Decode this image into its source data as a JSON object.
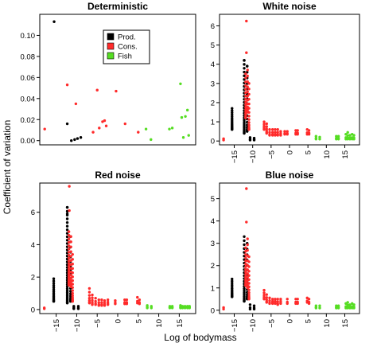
{
  "figure": {
    "xlabel": "Log of bodymass",
    "ylabel": "Coefficient of variation"
  },
  "legend": {
    "placement": "top-center of first panel",
    "entries": [
      {
        "label": "Prod.",
        "color": "#000000"
      },
      {
        "label": "Cons.",
        "color": "#ff2a2a"
      },
      {
        "label": "Fish",
        "color": "#55dd22"
      }
    ]
  },
  "colors": {
    "prod": "#000000",
    "cons": "#ff2a2a",
    "fish": "#55dd22"
  },
  "chart_data": [
    {
      "type": "scatter",
      "title": "Deterministic",
      "xlim": [
        -19,
        19
      ],
      "ylim": [
        -0.004,
        0.12
      ],
      "xticks": [],
      "yticks": [
        0.0,
        0.02,
        0.04,
        0.06,
        0.08,
        0.1
      ],
      "ytick_labels": [
        "0.00",
        "0.02",
        "0.04",
        "0.06",
        "0.08",
        "0.10"
      ],
      "series": [
        {
          "name": "Prod.",
          "points": [
            [
              -15.5,
              0.113
            ],
            [
              -12.3,
              0.016
            ],
            [
              -11.3,
              0.0
            ],
            [
              -10.5,
              0.001
            ],
            [
              -9.8,
              0.002
            ],
            [
              -9.0,
              0.003
            ]
          ]
        },
        {
          "name": "Cons.",
          "points": [
            [
              -17.8,
              0.011
            ],
            [
              -12.3,
              0.053
            ],
            [
              -10.2,
              0.035
            ],
            [
              -6.0,
              0.008
            ],
            [
              -5.0,
              0.048
            ],
            [
              -4.5,
              0.012
            ],
            [
              -3.7,
              0.018
            ],
            [
              -3.2,
              0.019
            ],
            [
              -2.8,
              0.014
            ],
            [
              -0.4,
              0.047
            ],
            [
              1.8,
              0.016
            ],
            [
              5.0,
              0.008
            ]
          ]
        },
        {
          "name": "Fish",
          "points": [
            [
              6.9,
              0.011
            ],
            [
              8.1,
              0.001
            ],
            [
              12.6,
              0.011
            ],
            [
              13.3,
              0.012
            ],
            [
              15.3,
              0.054
            ],
            [
              15.6,
              0.022
            ],
            [
              16.0,
              0.003
            ],
            [
              16.5,
              0.023
            ],
            [
              17.0,
              0.029
            ],
            [
              17.3,
              0.005
            ]
          ]
        }
      ]
    },
    {
      "type": "scatter",
      "title": "White noise",
      "xlim": [
        -19,
        19
      ],
      "ylim": [
        -0.2,
        6.6
      ],
      "xticks": [
        -15,
        -10,
        -5,
        0,
        5,
        10,
        15
      ],
      "yticks": [
        0,
        1,
        2,
        3,
        4,
        5,
        6
      ],
      "ytick_labels": [
        "0",
        "1",
        "2",
        "3",
        "4",
        "5",
        "6"
      ],
      "series": [
        {
          "name": "Prod.",
          "columns": [
            [
              -15.6,
              0.6,
              1.7,
              16
            ],
            [
              -12.3,
              0.4,
              4.2,
              30
            ],
            [
              -11.5,
              0.5,
              3.9,
              18
            ],
            [
              -10.7,
              0.05,
              0.18,
              3
            ],
            [
              -9.6,
              0.05,
              0.15,
              3
            ]
          ],
          "points": [
            [
              -12.3,
              4.2
            ],
            [
              -11.5,
              3.9
            ]
          ]
        },
        {
          "name": "Cons.",
          "columns": [
            [
              -17.9,
              0.05,
              0.12,
              2
            ],
            [
              -11.9,
              1.2,
              3.5,
              18
            ],
            [
              -11.4,
              1.5,
              3.7,
              12
            ],
            [
              -11.0,
              0.6,
              3.0,
              14
            ],
            [
              -6.9,
              0.6,
              1.0,
              6
            ],
            [
              -6.2,
              0.4,
              0.9,
              6
            ],
            [
              -5.4,
              0.3,
              0.6,
              4
            ],
            [
              -4.6,
              0.3,
              0.6,
              4
            ],
            [
              -3.9,
              0.3,
              0.6,
              4
            ],
            [
              -3.2,
              0.3,
              0.6,
              4
            ],
            [
              -2.4,
              0.3,
              0.5,
              4
            ],
            [
              -1.3,
              0.35,
              0.5,
              3
            ],
            [
              -0.6,
              0.35,
              0.5,
              3
            ],
            [
              1.7,
              0.35,
              0.55,
              3
            ],
            [
              2.2,
              0.35,
              0.55,
              3
            ],
            [
              4.8,
              0.35,
              0.6,
              3
            ],
            [
              5.3,
              0.35,
              0.55,
              3
            ]
          ],
          "points": [
            [
              -11.7,
              6.25
            ],
            [
              -11.7,
              4.6
            ]
          ]
        },
        {
          "name": "Fish",
          "columns": [
            [
              7.2,
              0.1,
              0.25,
              3
            ],
            [
              8.2,
              0.1,
              0.2,
              2
            ],
            [
              12.7,
              0.1,
              0.25,
              3
            ],
            [
              13.3,
              0.1,
              0.25,
              3
            ],
            [
              15.3,
              0.1,
              0.35,
              3
            ],
            [
              15.8,
              0.1,
              0.45,
              4
            ],
            [
              16.4,
              0.1,
              0.3,
              3
            ],
            [
              17.0,
              0.1,
              0.35,
              3
            ],
            [
              17.5,
              0.1,
              0.3,
              3
            ]
          ],
          "points": []
        }
      ]
    },
    {
      "type": "scatter",
      "title": "Red noise",
      "xlim": [
        -19,
        19
      ],
      "ylim": [
        -0.25,
        7.8
      ],
      "xticks": [
        -15,
        -10,
        -5,
        0,
        5,
        10,
        15
      ],
      "yticks": [
        0,
        2,
        4,
        6
      ],
      "ytick_labels": [
        "0",
        "2",
        "4",
        "6"
      ],
      "series": [
        {
          "name": "Prod.",
          "columns": [
            [
              -15.6,
              0.5,
              1.9,
              16
            ],
            [
              -12.3,
              0.4,
              6.3,
              40
            ],
            [
              -11.5,
              0.5,
              4.5,
              20
            ],
            [
              -10.7,
              0.05,
              0.2,
              3
            ],
            [
              -9.6,
              0.05,
              0.2,
              3
            ]
          ],
          "points": [
            [
              -12.3,
              6.3
            ],
            [
              -12.3,
              5.9
            ]
          ]
        },
        {
          "name": "Cons.",
          "columns": [
            [
              -17.9,
              0.05,
              0.1,
              2
            ],
            [
              -11.9,
              1.5,
              4.8,
              24
            ],
            [
              -11.4,
              1.4,
              4.5,
              16
            ],
            [
              -11.0,
              0.5,
              3.4,
              16
            ],
            [
              -6.9,
              0.4,
              1.3,
              7
            ],
            [
              -6.2,
              0.3,
              0.9,
              6
            ],
            [
              -5.4,
              0.3,
              0.7,
              4
            ],
            [
              -4.6,
              0.25,
              0.6,
              4
            ],
            [
              -3.9,
              0.25,
              0.6,
              4
            ],
            [
              -3.2,
              0.25,
              0.55,
              4
            ],
            [
              -2.4,
              0.3,
              0.6,
              4
            ],
            [
              -0.6,
              0.35,
              0.55,
              3
            ],
            [
              1.7,
              0.35,
              0.6,
              3
            ],
            [
              2.2,
              0.35,
              0.6,
              3
            ],
            [
              4.8,
              0.4,
              0.75,
              3
            ],
            [
              5.3,
              0.35,
              0.6,
              3
            ]
          ],
          "points": [
            [
              -11.8,
              7.6
            ],
            [
              -11.8,
              6.1
            ]
          ]
        },
        {
          "name": "Fish",
          "columns": [
            [
              7.2,
              0.1,
              0.25,
              3
            ],
            [
              8.2,
              0.1,
              0.2,
              2
            ],
            [
              12.7,
              0.1,
              0.2,
              3
            ],
            [
              13.3,
              0.1,
              0.2,
              3
            ],
            [
              15.3,
              0.1,
              0.25,
              3
            ],
            [
              15.8,
              0.1,
              0.2,
              3
            ],
            [
              16.4,
              0.1,
              0.2,
              3
            ],
            [
              17.0,
              0.1,
              0.2,
              3
            ],
            [
              17.5,
              0.1,
              0.2,
              3
            ]
          ],
          "points": []
        }
      ]
    },
    {
      "type": "scatter",
      "title": "Blue noise",
      "xlim": [
        -19,
        19
      ],
      "ylim": [
        -0.15,
        5.7
      ],
      "xticks": [
        -15,
        -10,
        -5,
        0,
        5,
        10,
        15
      ],
      "yticks": [
        0,
        1,
        2,
        3,
        4,
        5
      ],
      "ytick_labels": [
        "0",
        "1",
        "2",
        "3",
        "4",
        "5"
      ],
      "series": [
        {
          "name": "Prod.",
          "columns": [
            [
              -15.6,
              0.6,
              1.4,
              14
            ],
            [
              -12.3,
              0.4,
              3.3,
              26
            ],
            [
              -11.5,
              0.5,
              3.0,
              16
            ],
            [
              -10.7,
              0.05,
              0.25,
              3
            ],
            [
              -9.6,
              0.05,
              0.2,
              3
            ]
          ],
          "points": []
        },
        {
          "name": "Cons.",
          "columns": [
            [
              -17.9,
              0.05,
              0.12,
              2
            ],
            [
              -11.9,
              1.1,
              2.8,
              18
            ],
            [
              -11.4,
              1.0,
              3.2,
              14
            ],
            [
              -11.0,
              0.5,
              2.4,
              14
            ],
            [
              -6.9,
              0.5,
              0.9,
              6
            ],
            [
              -6.2,
              0.35,
              0.7,
              5
            ],
            [
              -5.4,
              0.3,
              0.55,
              4
            ],
            [
              -4.6,
              0.3,
              0.5,
              4
            ],
            [
              -3.9,
              0.3,
              0.5,
              4
            ],
            [
              -3.2,
              0.25,
              0.5,
              4
            ],
            [
              -2.4,
              0.3,
              0.5,
              4
            ],
            [
              -0.6,
              0.3,
              0.5,
              3
            ],
            [
              1.7,
              0.3,
              0.5,
              3
            ],
            [
              2.2,
              0.3,
              0.5,
              3
            ],
            [
              4.8,
              0.35,
              0.55,
              3
            ],
            [
              5.3,
              0.3,
              0.5,
              3
            ]
          ],
          "points": [
            [
              -11.7,
              5.45
            ],
            [
              -11.7,
              3.95
            ]
          ]
        },
        {
          "name": "Fish",
          "columns": [
            [
              7.2,
              0.1,
              0.2,
              3
            ],
            [
              8.2,
              0.1,
              0.2,
              2
            ],
            [
              12.7,
              0.1,
              0.2,
              3
            ],
            [
              13.3,
              0.1,
              0.2,
              3
            ],
            [
              15.3,
              0.1,
              0.3,
              3
            ],
            [
              15.8,
              0.1,
              0.35,
              4
            ],
            [
              16.4,
              0.1,
              0.25,
              3
            ],
            [
              17.0,
              0.1,
              0.3,
              3
            ],
            [
              17.5,
              0.1,
              0.25,
              3
            ]
          ],
          "points": []
        }
      ]
    }
  ]
}
